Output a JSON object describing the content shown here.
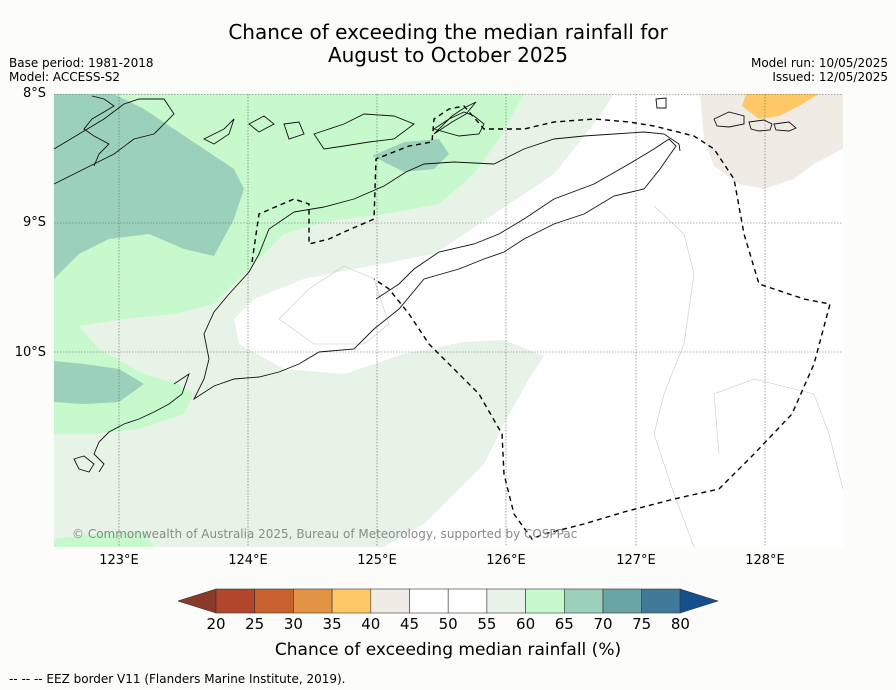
{
  "header": {
    "title_line1": "Chance of exceeding the median rainfall for",
    "title_line2": "August to October 2025",
    "base_period": "Base period: 1981-2018",
    "model": "Model: ACCESS-S2",
    "model_run": "Model run: 10/05/2025",
    "issued": "Issued: 12/05/2025"
  },
  "map": {
    "lat_labels": [
      "8°S",
      "9°S",
      "10°S"
    ],
    "lon_labels": [
      "123°E",
      "124°E",
      "125°E",
      "126°E",
      "127°E",
      "128°E"
    ],
    "copyright": "© Commonwealth of Australia 2025, Bureau of Meteorology, supported by COSPPac",
    "region_colors": {
      "very_high": "#9bd1bb",
      "high": "#c8f9cd",
      "slightly_high": "#e8f3e8",
      "neutral": "#ffffff",
      "slightly_low": "#f1ebe6",
      "low": "#fec866"
    }
  },
  "colorbar": {
    "label": "Chance of exceeding median rainfall (%)",
    "ticks": [
      "20",
      "25",
      "30",
      "35",
      "40",
      "45",
      "50",
      "55",
      "60",
      "65",
      "70",
      "75",
      "80"
    ],
    "colors": [
      "#b2462b",
      "#c8612d",
      "#e29444",
      "#fec866",
      "#f1ebe6",
      "#ffffff",
      "#ffffff",
      "#e8f3e8",
      "#c8f9cd",
      "#9bd1bb",
      "#6aa5a6",
      "#417a99"
    ],
    "under_color": "#8b3a28",
    "over_color": "#154f8c"
  },
  "footer": {
    "legend_text": "--  --  -- EEZ border V11 (Flanders Marine Institute, 2019)."
  }
}
